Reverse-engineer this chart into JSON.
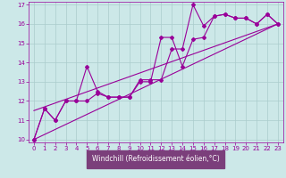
{
  "xlabel": "Windchill (Refroidissement éolien,°C)",
  "x": [
    0,
    1,
    2,
    3,
    4,
    5,
    6,
    7,
    8,
    9,
    10,
    11,
    12,
    13,
    14,
    15,
    16,
    17,
    18,
    19,
    20,
    21,
    22,
    23
  ],
  "line1": [
    10.0,
    11.6,
    11.0,
    12.0,
    12.0,
    13.8,
    12.5,
    12.2,
    12.2,
    12.2,
    13.1,
    13.1,
    13.1,
    14.7,
    14.7,
    17.0,
    15.9,
    16.4,
    16.5,
    16.3,
    16.3,
    16.0,
    16.5,
    16.0
  ],
  "line2": [
    10.0,
    11.6,
    11.0,
    12.0,
    12.0,
    12.0,
    12.4,
    12.2,
    12.2,
    12.2,
    13.0,
    13.0,
    15.3,
    15.3,
    13.8,
    15.2,
    15.3,
    16.4,
    16.5,
    16.3,
    16.3,
    16.0,
    16.5,
    16.0
  ],
  "line3_x": [
    0,
    23
  ],
  "line3_y": [
    10.0,
    16.0
  ],
  "line4_x": [
    0,
    23
  ],
  "line4_y": [
    11.5,
    16.0
  ],
  "color": "#990099",
  "bg_color": "#cce8e8",
  "grid_color": "#aacccc",
  "ylim": [
    9.85,
    17.15
  ],
  "xlim": [
    -0.5,
    23.5
  ],
  "yticks": [
    10,
    11,
    12,
    13,
    14,
    15,
    16,
    17
  ],
  "xticks": [
    0,
    1,
    2,
    3,
    4,
    5,
    6,
    7,
    8,
    9,
    10,
    11,
    12,
    13,
    14,
    15,
    16,
    17,
    18,
    19,
    20,
    21,
    22,
    23
  ],
  "marker": "D",
  "markersize": 2.0,
  "linewidth": 0.8,
  "xlabel_bg": "#7b3f7b",
  "xlabel_color": "#ffffff",
  "tick_fontsize": 5.0,
  "xlabel_fontsize": 5.5
}
